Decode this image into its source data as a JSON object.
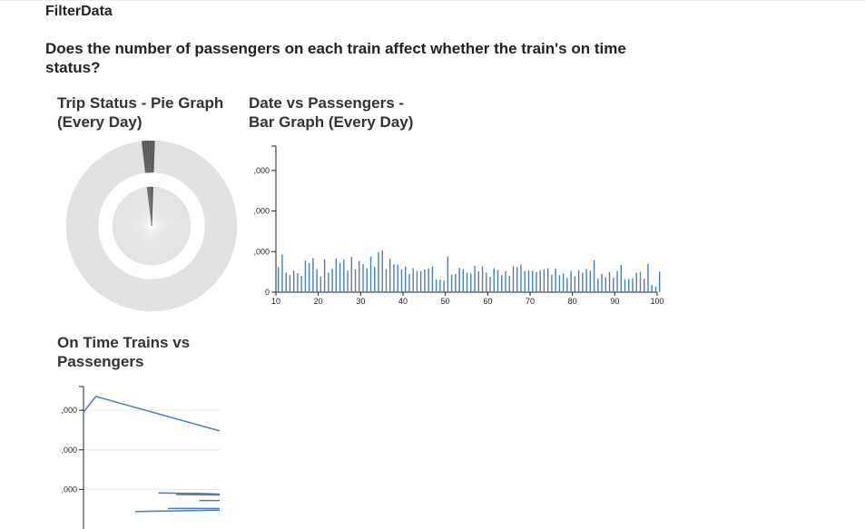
{
  "app": {
    "title": "FilterData"
  },
  "question": "Does the number of passengers on each train affect whether the train's on time status?",
  "colors": {
    "bar": "#4a7fb5",
    "line": "#4a7fb5",
    "pie_gray": "#e0e0e0",
    "pie_dark": "#555555",
    "grid": "#e6e6e6"
  },
  "chart_data": [
    {
      "type": "pie",
      "title": "Trip Status - Pie Graph (Every Day)",
      "rings": [
        "outer",
        "inner"
      ],
      "segments": [
        {
          "name": "",
          "value": 0.98,
          "color": "#e0e0e0"
        },
        {
          "name": "",
          "value": 0.02,
          "color": "#555555"
        }
      ]
    },
    {
      "type": "bar",
      "title": "Date vs Passengers - Bar Graph (Every Day)",
      "xlabel": "",
      "ylabel": "",
      "xlim": [
        10,
        100
      ],
      "ylim": [
        0,
        3600
      ],
      "x_ticks": [
        10,
        20,
        30,
        40,
        50,
        60,
        70,
        80,
        90,
        100
      ],
      "y_ticks": [
        {
          "v": 0,
          "label": "0"
        },
        {
          "v": 1000,
          "label": ",000"
        },
        {
          "v": 2000,
          "label": ",000"
        },
        {
          "v": 3000,
          "label": ",000"
        }
      ],
      "values": [
        620,
        930,
        480,
        420,
        530,
        470,
        400,
        780,
        710,
        840,
        560,
        380,
        810,
        480,
        580,
        830,
        720,
        800,
        530,
        870,
        560,
        770,
        690,
        590,
        880,
        620,
        980,
        1030,
        570,
        820,
        690,
        680,
        560,
        630,
        450,
        590,
        520,
        520,
        560,
        580,
        630,
        310,
        310,
        280,
        880,
        430,
        450,
        600,
        560,
        480,
        460,
        650,
        510,
        640,
        480,
        380,
        590,
        550,
        420,
        520,
        400,
        640,
        620,
        680,
        520,
        540,
        530,
        500,
        540,
        570,
        590,
        430,
        580,
        420,
        460,
        350,
        520,
        390,
        540,
        480,
        570,
        530,
        790,
        340,
        450,
        370,
        500,
        360,
        520,
        670,
        320,
        330,
        340,
        480,
        500,
        330,
        700,
        180,
        140,
        510
      ]
    },
    {
      "type": "line",
      "title": "On Time Trains vs Passengers",
      "xlabel": "",
      "ylabel": "",
      "ylim": [
        0,
        3600
      ],
      "y_ticks": [
        {
          "v": 1000,
          "label": ",000"
        },
        {
          "v": 2000,
          "label": ",000"
        },
        {
          "v": 3000,
          "label": ",000"
        }
      ],
      "series": [
        {
          "name": "",
          "points": [
            [
              0,
              2950
            ],
            [
              0.09,
              3350
            ],
            [
              1.0,
              2480
            ]
          ]
        },
        {
          "name": "",
          "points": [
            [
              0.55,
              910
            ],
            [
              0.85,
              900
            ],
            [
              0.93,
              890
            ],
            [
              1.0,
              880
            ]
          ]
        },
        {
          "name": "",
          "points": [
            [
              0.68,
              870
            ],
            [
              1.0,
              860
            ]
          ]
        },
        {
          "name": "",
          "points": [
            [
              0.85,
              720
            ],
            [
              1.0,
              720
            ]
          ]
        },
        {
          "name": "",
          "points": [
            [
              0.38,
              440
            ],
            [
              0.7,
              460
            ],
            [
              1.0,
              480
            ]
          ]
        },
        {
          "name": "",
          "points": [
            [
              0.62,
              520
            ],
            [
              1.0,
              520
            ]
          ]
        }
      ]
    }
  ]
}
